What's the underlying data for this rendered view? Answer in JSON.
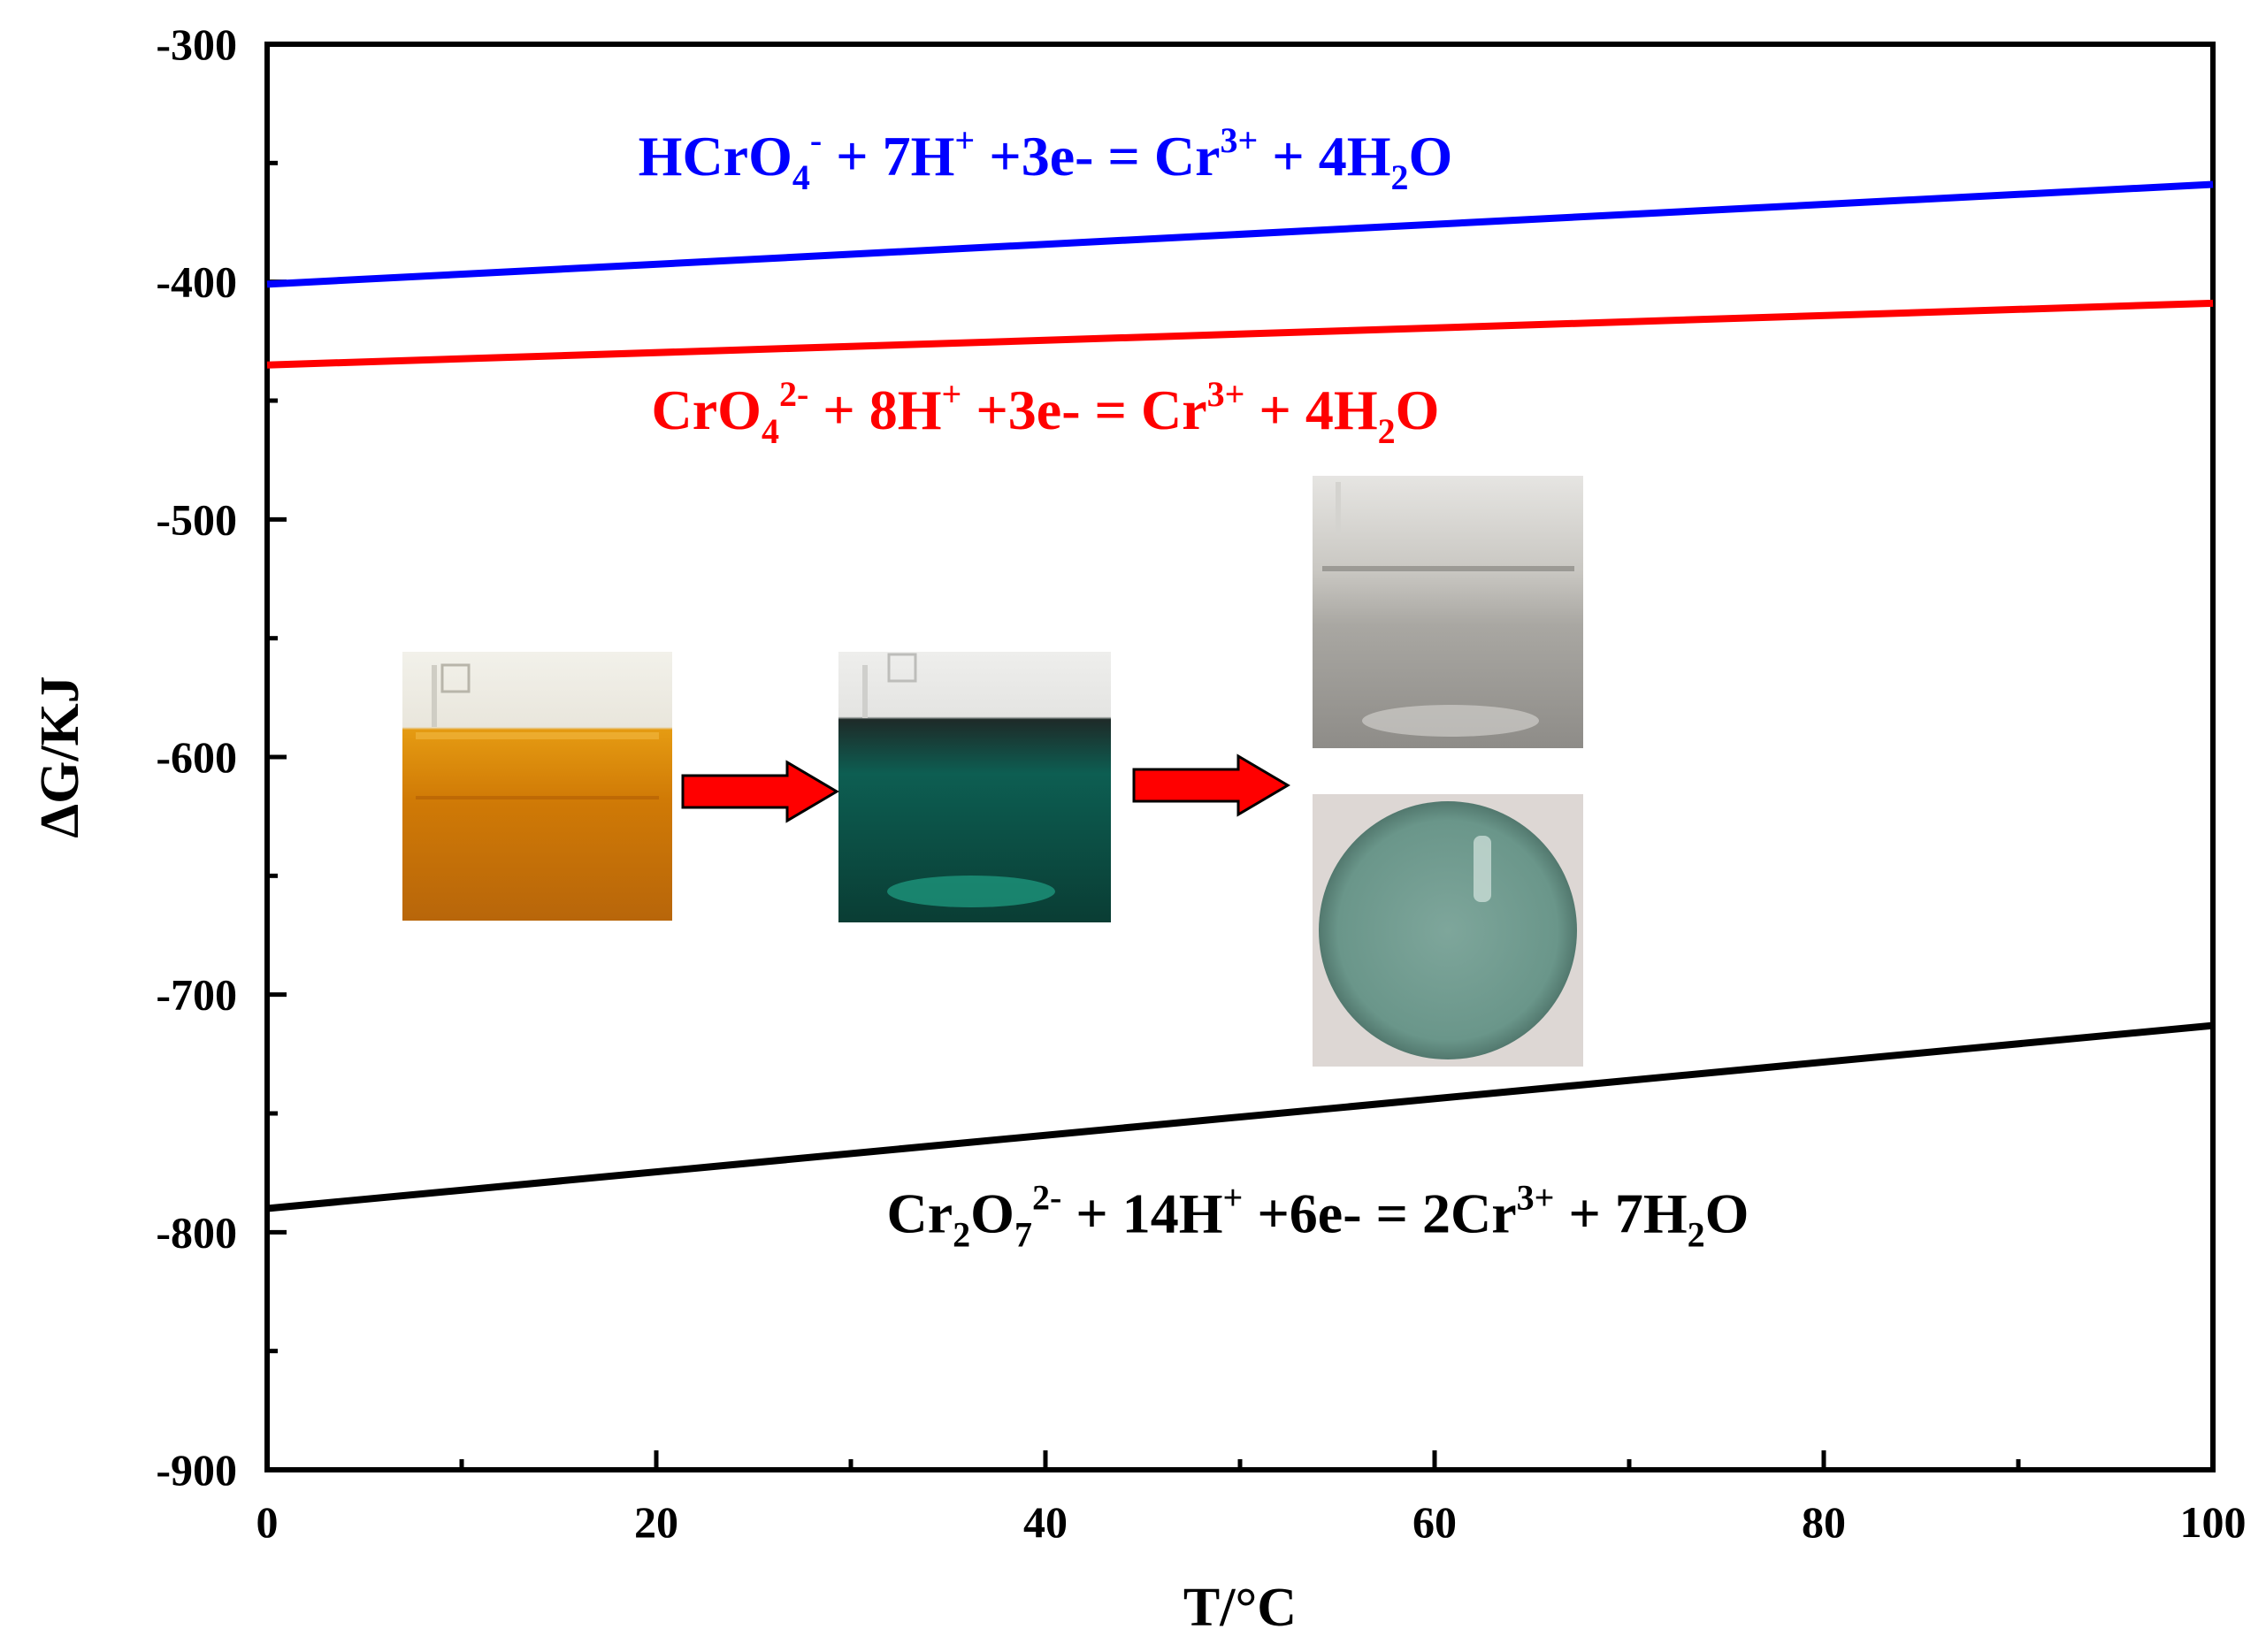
{
  "chart_data": {
    "type": "line",
    "xlabel": "T/°C",
    "ylabel": "ΔG/KJ",
    "xlim": [
      0,
      100
    ],
    "ylim": [
      -900,
      -300
    ],
    "xticks": [
      0,
      20,
      40,
      60,
      80,
      100
    ],
    "yticks": [
      -900,
      -800,
      -700,
      -600,
      -500,
      -400,
      -300
    ],
    "xtick_labels": [
      "0",
      "20",
      "40",
      "60",
      "80",
      "100"
    ],
    "ytick_labels": [
      "-900",
      "-800",
      "-700",
      "-600",
      "-500",
      "-400",
      "-300"
    ],
    "x_minor_step": 10,
    "y_minor_step": 50,
    "grid": false,
    "legend": "none",
    "series": [
      {
        "x": [
          0,
          100
        ],
        "values": [
          -401,
          -359
        ],
        "color": "#0000ff"
      },
      {
        "x": [
          0,
          100
        ],
        "values": [
          -435,
          -409
        ],
        "color": "#ff0000"
      },
      {
        "x": [
          0,
          100
        ],
        "values": [
          -790,
          -713
        ],
        "color": "#000000"
      }
    ],
    "annotations": [
      {
        "key": "hcro4",
        "color": "#0000ff",
        "at": [
          40,
          -355
        ],
        "parts": [
          "HCrO",
          "4",
          "-",
          " + 7H",
          "+",
          " +3e-  = Cr",
          "3+",
          " + 4H",
          "2",
          "O"
        ]
      },
      {
        "key": "cro4",
        "color": "#ff0000",
        "at": [
          40,
          -462
        ],
        "parts": [
          "CrO",
          "4",
          "2-",
          " + 8H",
          "+",
          " +3e-  = Cr",
          "3+",
          " + 4H",
          "2",
          "O"
        ]
      },
      {
        "key": "cr2o7",
        "color": "#000000",
        "at": [
          54,
          -800
        ],
        "parts": [
          "Cr",
          "2",
          "O",
          "7",
          "2-",
          "  + 14H",
          "+",
          "  +6e- = 2Cr",
          "3+",
          "  + 7H",
          "2",
          "O"
        ]
      }
    ]
  },
  "photos": {
    "arrow_color": "#ff0000",
    "beaker_orange": {
      "color": "#d8860b"
    },
    "beaker_green": {
      "color": "#0f6a5a"
    },
    "beaker_clear": {
      "color": "#b4b2ae"
    },
    "dish": {
      "color": "#6f9a8e"
    }
  }
}
